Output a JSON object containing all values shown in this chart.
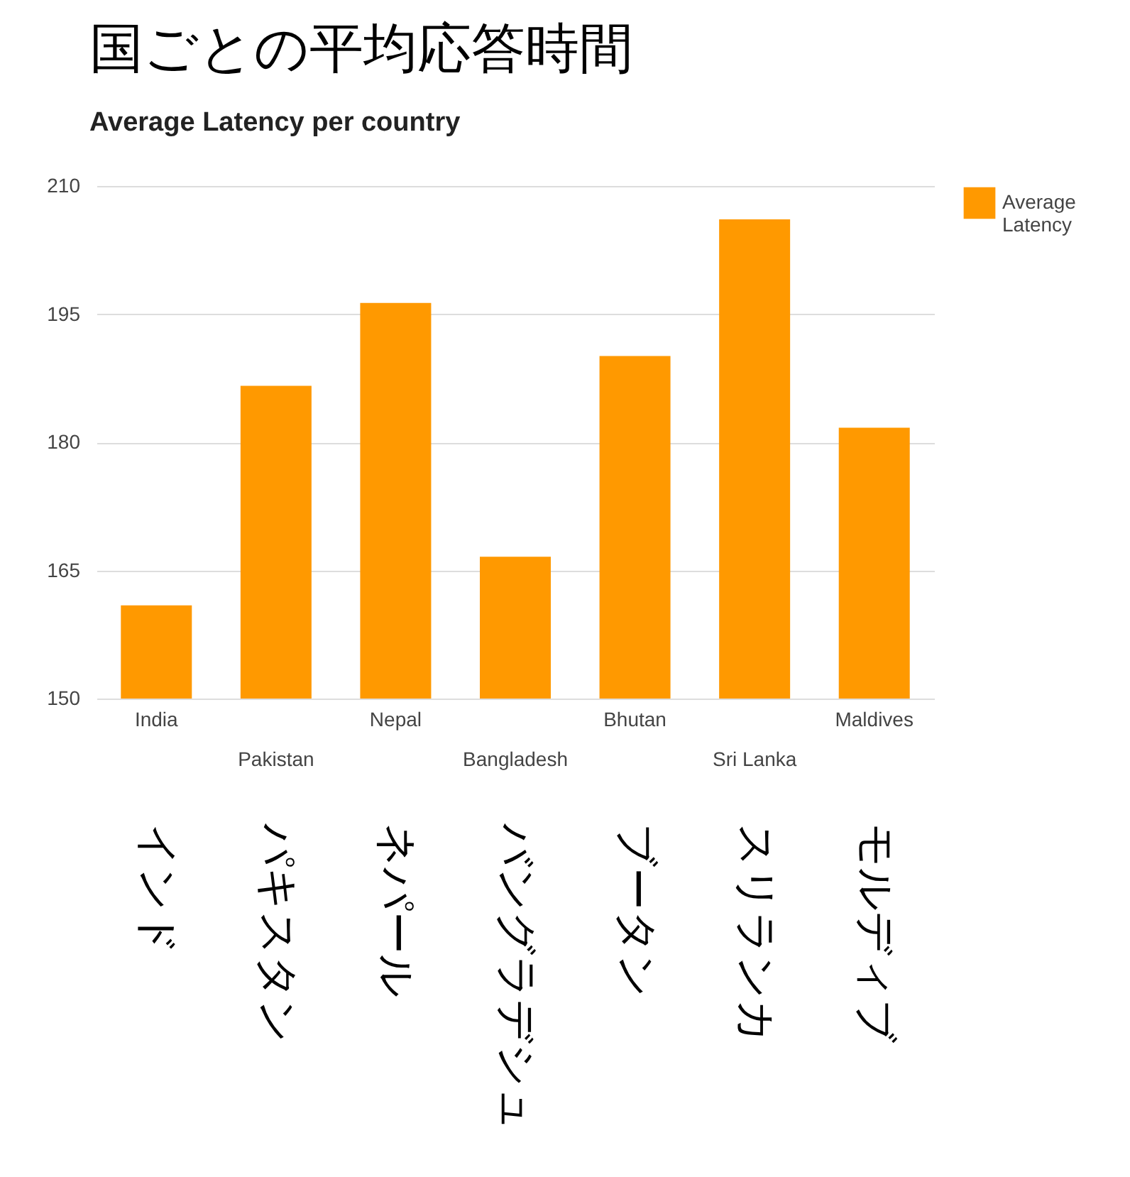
{
  "chart_data": {
    "type": "bar",
    "title": "国ごとの平均応答時間",
    "subtitle": "Average Latency per country",
    "categories": [
      "India",
      "Pakistan",
      "Nepal",
      "Bangladesh",
      "Bhutan",
      "Sri Lanka",
      "Maldives"
    ],
    "series": [
      {
        "name": "Average Latency",
        "color": "#ff9900",
        "values": [
          160.9,
          186.6,
          196.3,
          166.6,
          190.1,
          206.1,
          181.7
        ]
      }
    ],
    "annotations": [
      "インド",
      "パキスタン",
      "ネパール",
      "バングラデシュ",
      "ブータン",
      "スリランカ",
      "モルディブ"
    ],
    "ylim": [
      150,
      210
    ],
    "yticks": [
      150,
      165,
      180,
      195,
      210
    ],
    "grid": "y",
    "legend": "top right"
  }
}
